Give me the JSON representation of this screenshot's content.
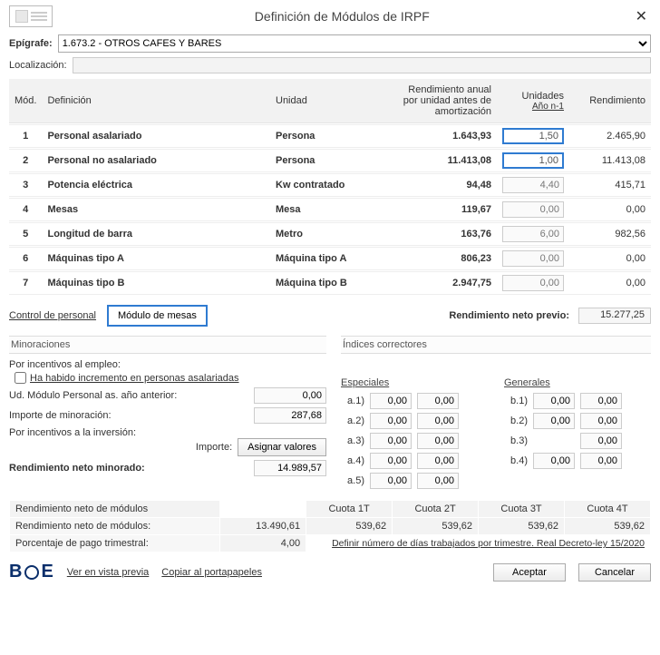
{
  "title": "Definición de Módulos de IRPF",
  "epigrafe_label": "Epígrafe:",
  "epigrafe_value": "1.673.2 - OTROS CAFES Y BARES",
  "localizacion_label": "Localización:",
  "table": {
    "headers": {
      "mod": "Mód.",
      "definicion": "Definición",
      "unidad": "Unidad",
      "rendimiento_anual": "Rendimiento anual por unidad antes de amortización",
      "unidades": "Unidades",
      "unidades_sub": "Año n-1",
      "rendimiento": "Rendimiento"
    },
    "rows": [
      {
        "n": "1",
        "def": "Personal asalariado",
        "uni": "Persona",
        "rau": "1.643,93",
        "unid": "1,50",
        "sel": true,
        "rend": "2.465,90"
      },
      {
        "n": "2",
        "def": "Personal no asalariado",
        "uni": "Persona",
        "rau": "11.413,08",
        "unid": "1,00",
        "sel": true,
        "rend": "11.413,08"
      },
      {
        "n": "3",
        "def": "Potencia eléctrica",
        "uni": "Kw contratado",
        "rau": "94,48",
        "unid": "4,40",
        "sel": false,
        "rend": "415,71"
      },
      {
        "n": "4",
        "def": "Mesas",
        "uni": "Mesa",
        "rau": "119,67",
        "unid": "0,00",
        "sel": false,
        "rend": "0,00"
      },
      {
        "n": "5",
        "def": "Longitud de barra",
        "uni": "Metro",
        "rau": "163,76",
        "unid": "6,00",
        "sel": false,
        "rend": "982,56"
      },
      {
        "n": "6",
        "def": "Máquinas tipo A",
        "uni": "Máquina tipo A",
        "rau": "806,23",
        "unid": "0,00",
        "sel": false,
        "rend": "0,00"
      },
      {
        "n": "7",
        "def": "Máquinas tipo B",
        "uni": "Máquina tipo B",
        "rau": "2.947,75",
        "unid": "0,00",
        "sel": false,
        "rend": "0,00"
      }
    ]
  },
  "links": {
    "control_personal": "Control de personal",
    "modulo_mesas": "Módulo de mesas"
  },
  "rn_previo_label": "Rendimiento neto previo:",
  "rn_previo": "15.277,25",
  "minoraciones": {
    "title": "Minoraciones",
    "por_empleo": "Por incentivos al empleo:",
    "chk_incremento": "Ha habido incremento en personas asalariadas",
    "ud_modulo": "Ud. Módulo Personal as. año anterior:",
    "ud_modulo_val": "0,00",
    "importe_min": "Importe de minoración:",
    "importe_min_val": "287,68",
    "por_inversion": "Por incentivos a la inversión:",
    "importe_lbl": "Importe:",
    "asignar_btn": "Asignar valores",
    "rn_minorado_lbl": "Rendimiento neto minorado:",
    "rn_minorado": "14.989,57"
  },
  "indices": {
    "title": "Índices correctores",
    "especiales": "Especiales",
    "generales": "Generales",
    "a": [
      {
        "k": "a.1)",
        "v1": "0,00",
        "v2": "0,00"
      },
      {
        "k": "a.2)",
        "v1": "0,00",
        "v2": "0,00"
      },
      {
        "k": "a.3)",
        "v1": "0,00",
        "v2": "0,00"
      },
      {
        "k": "a.4)",
        "v1": "0,00",
        "v2": "0,00"
      },
      {
        "k": "a.5)",
        "v1": "0,00",
        "v2": "0,00"
      }
    ],
    "b": [
      {
        "k": "b.1)",
        "v1": "0,00",
        "v2": "0,00"
      },
      {
        "k": "b.2)",
        "v1": "0,00",
        "v2": "0,00"
      },
      {
        "k": "b.3)",
        "v1": "",
        "v2": "0,00"
      },
      {
        "k": "b.4)",
        "v1": "0,00",
        "v2": "0,00"
      }
    ]
  },
  "cuotas": {
    "head_rn": "Rendimiento neto de módulos",
    "c1": "Cuota 1T",
    "c2": "Cuota 2T",
    "c3": "Cuota 3T",
    "c4": "Cuota 4T",
    "rn_lbl": "Rendimiento neto de módulos:",
    "rn_val": "13.490,61",
    "v1": "539,62",
    "v2": "539,62",
    "v3": "539,62",
    "v4": "539,62",
    "pct_lbl": "Porcentaje de pago trimestral:",
    "pct_val": "4,00",
    "trimlink": "Definir número de días trabajados por trimestre. Real Decreto-ley 15/2020"
  },
  "footer": {
    "boe": "BOE",
    "ver": "Ver en vista previa",
    "copiar": "Copiar al portapapeles",
    "aceptar": "Aceptar",
    "cancelar": "Cancelar"
  }
}
